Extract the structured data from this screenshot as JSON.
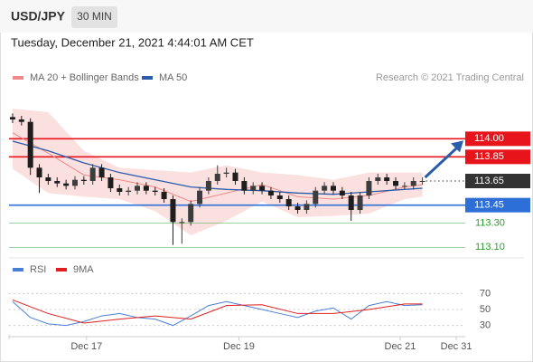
{
  "header": {
    "symbol": "USD/JPY",
    "interval": "30 MIN"
  },
  "timestamp": "Tuesday, December 21, 2021 4:44:01 AM CET",
  "copyright": "Research © 2021 Trading Central",
  "chart_data": {
    "type": "candlestick",
    "xlim": [
      -0.4,
      50.3
    ],
    "ylim": [
      113.05,
      114.25
    ],
    "xticks": [
      {
        "value": 8.3,
        "label": "Dec 17"
      },
      {
        "value": 25.4,
        "label": "Dec 19"
      },
      {
        "value": 43.5,
        "label": "Dec 21"
      },
      {
        "value": 49.8,
        "label": "Dec 31"
      }
    ],
    "up_color": "#3d3d3d",
    "down_color": "#1e1e1e",
    "open": [
      114.18,
      114.16,
      114.14,
      113.76,
      113.68,
      113.65,
      113.63,
      113.61,
      113.66,
      113.65,
      113.76,
      113.68,
      113.59,
      113.56,
      113.57,
      113.61,
      113.57,
      113.56,
      113.5,
      113.31,
      113.31,
      113.46,
      113.57,
      113.65,
      113.71,
      113.72,
      113.65,
      113.57,
      113.61,
      113.57,
      113.53,
      113.5,
      113.44,
      113.41,
      113.46,
      113.57,
      113.61,
      113.57,
      113.53,
      113.41,
      113.53,
      113.65,
      113.68,
      113.65,
      113.61,
      113.61,
      113.65
    ],
    "high": [
      114.21,
      114.19,
      114.17,
      113.79,
      113.71,
      113.68,
      113.66,
      113.69,
      113.69,
      113.79,
      113.79,
      113.71,
      113.62,
      113.6,
      113.64,
      113.64,
      113.6,
      113.59,
      113.53,
      113.34,
      113.49,
      113.6,
      113.68,
      113.78,
      113.76,
      113.75,
      113.68,
      113.64,
      113.64,
      113.6,
      113.56,
      113.53,
      113.47,
      113.49,
      113.6,
      113.64,
      113.64,
      113.6,
      113.56,
      113.56,
      113.68,
      113.71,
      113.71,
      113.68,
      113.64,
      113.68,
      113.68
    ],
    "low": [
      114.13,
      114.11,
      113.7,
      113.55,
      113.62,
      113.6,
      113.58,
      113.58,
      113.62,
      113.62,
      113.65,
      113.56,
      113.53,
      113.53,
      113.54,
      113.54,
      113.53,
      113.47,
      113.12,
      113.13,
      113.28,
      113.43,
      113.54,
      113.62,
      113.68,
      113.62,
      113.54,
      113.54,
      113.54,
      113.5,
      113.47,
      113.41,
      113.38,
      113.38,
      113.43,
      113.54,
      113.54,
      113.5,
      113.32,
      113.38,
      113.5,
      113.62,
      113.62,
      113.58,
      113.58,
      113.58,
      113.62
    ],
    "close": [
      114.16,
      114.14,
      113.76,
      113.68,
      113.65,
      113.63,
      113.61,
      113.66,
      113.65,
      113.76,
      113.68,
      113.59,
      113.56,
      113.57,
      113.61,
      113.57,
      113.56,
      113.5,
      113.31,
      113.31,
      113.46,
      113.57,
      113.65,
      113.71,
      113.72,
      113.65,
      113.57,
      113.61,
      113.57,
      113.53,
      113.5,
      113.44,
      113.41,
      113.46,
      113.57,
      113.61,
      113.57,
      113.53,
      113.41,
      113.53,
      113.65,
      113.68,
      113.65,
      113.61,
      113.61,
      113.65,
      113.65
    ],
    "series": [
      {
        "name": "MA 20 + Bollinger Bands",
        "color": "#f08a8a",
        "band_color": "#fbe0e0",
        "x": [
          0,
          4,
          8,
          12,
          16,
          20,
          24,
          28,
          32,
          36,
          40,
          44,
          46
        ],
        "values": [
          114.05,
          113.88,
          113.7,
          113.66,
          113.6,
          113.48,
          113.55,
          113.62,
          113.52,
          113.5,
          113.53,
          113.6,
          113.62
        ],
        "upper": [
          114.25,
          114.22,
          113.9,
          113.76,
          113.74,
          113.72,
          113.78,
          113.72,
          113.7,
          113.66,
          113.72,
          113.72,
          113.72
        ],
        "lower": [
          113.75,
          113.55,
          113.52,
          113.5,
          113.4,
          113.2,
          113.32,
          113.48,
          113.35,
          113.36,
          113.38,
          113.5,
          113.52
        ]
      },
      {
        "name": "MA 50",
        "color": "#2a5caa",
        "x": [
          0,
          4,
          8,
          12,
          16,
          20,
          24,
          28,
          32,
          36,
          40,
          44,
          46
        ],
        "values": [
          113.98,
          113.9,
          113.8,
          113.72,
          113.66,
          113.6,
          113.58,
          113.57,
          113.55,
          113.54,
          113.56,
          113.58,
          113.59
        ]
      }
    ],
    "levels": [
      {
        "value": 114.0,
        "label": "114.00",
        "color": "#e8141c",
        "boxed": true
      },
      {
        "value": 113.85,
        "label": "113.85",
        "color": "#e8141c",
        "boxed": true
      },
      {
        "value": 113.65,
        "label": "113.65",
        "color": "#333333",
        "boxed": true,
        "dotted": true
      },
      {
        "value": 113.45,
        "label": "113.45",
        "color": "#2d6fd6",
        "boxed": true
      },
      {
        "value": 113.3,
        "label": "113.30",
        "color": "#2e9a2e",
        "boxed": false
      },
      {
        "value": 113.1,
        "label": "113.10",
        "color": "#2e9a2e",
        "boxed": false
      }
    ],
    "rsi": {
      "ylim": [
        16,
        92
      ],
      "yticks": [
        70,
        50,
        30
      ],
      "series": [
        {
          "name": "RSI",
          "color": "#4a7fd6",
          "x": [
            0,
            2,
            4,
            6,
            8,
            10,
            12,
            14,
            16,
            18,
            20,
            22,
            24,
            26,
            28,
            30,
            32,
            34,
            36,
            38,
            40,
            42,
            44,
            46
          ],
          "values": [
            60,
            40,
            32,
            30,
            35,
            42,
            45,
            40,
            38,
            30,
            42,
            55,
            60,
            55,
            50,
            45,
            40,
            48,
            52,
            38,
            55,
            60,
            55,
            56
          ]
        },
        {
          "name": "9MA",
          "color": "#e02020",
          "x": [
            0,
            4,
            8,
            12,
            16,
            20,
            24,
            28,
            32,
            36,
            40,
            44,
            46
          ],
          "values": [
            62,
            45,
            33,
            38,
            42,
            38,
            55,
            56,
            45,
            45,
            50,
            57,
            57
          ]
        }
      ]
    }
  }
}
